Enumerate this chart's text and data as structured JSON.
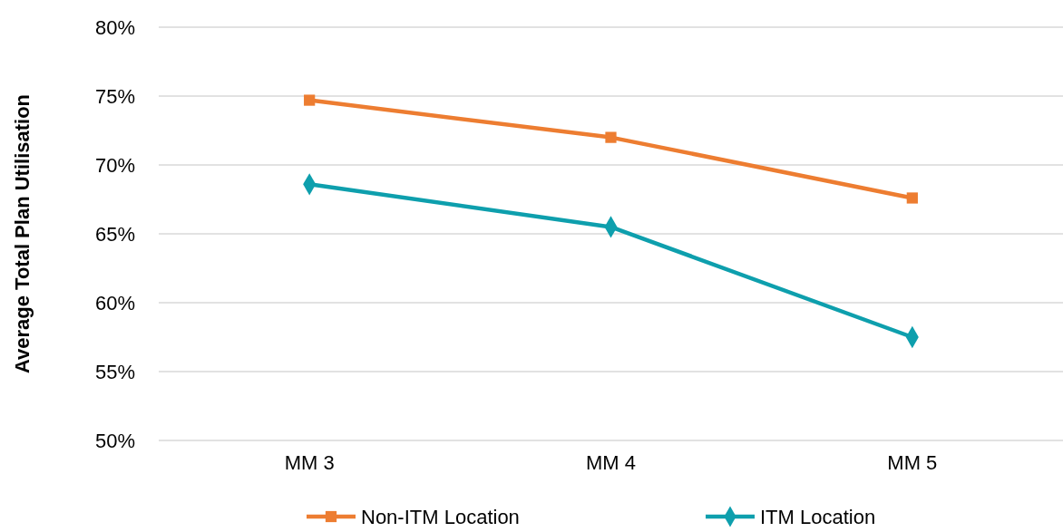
{
  "chart_data": {
    "type": "line",
    "ylabel": "Average Total Plan Utilisation",
    "categories": [
      "MM 3",
      "MM 4",
      "MM 5"
    ],
    "series": [
      {
        "name": "Non-ITM Location",
        "color": "#ed7d31",
        "marker": "square",
        "values": [
          74.7,
          72.0,
          67.6
        ]
      },
      {
        "name": "ITM Location",
        "color": "#0e9fad",
        "marker": "diamond",
        "values": [
          68.6,
          65.5,
          57.5
        ]
      }
    ],
    "ylim": [
      50,
      80
    ],
    "yticks": [
      {
        "value": 50,
        "label": "50%"
      },
      {
        "value": 55,
        "label": "55%"
      },
      {
        "value": 60,
        "label": "60%"
      },
      {
        "value": 65,
        "label": "65%"
      },
      {
        "value": 70,
        "label": "70%"
      },
      {
        "value": 75,
        "label": "75%"
      },
      {
        "value": 80,
        "label": "80%"
      }
    ],
    "grid": "y",
    "legend": "bottom",
    "line_style": "solid"
  }
}
